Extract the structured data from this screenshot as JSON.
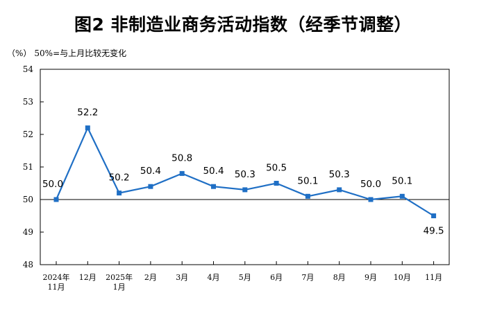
{
  "title": "图2  非制造业商务活动指数（经季节调整）",
  "unit_label": "（%）",
  "note": "50%=与上月比较无变化",
  "colors": {
    "line": "#1f6fc5",
    "marker": "#1f6fc5",
    "axis": "#000000",
    "text": "#000000"
  },
  "chart_data": {
    "type": "line",
    "title": "图2  非制造业商务活动指数（经季节调整）",
    "ylabel": "（%）",
    "ylim": [
      48,
      54
    ],
    "yticks": [
      "48",
      "49",
      "50",
      "51",
      "52",
      "53",
      "54"
    ],
    "grid": false,
    "categories": [
      [
        "2024年",
        "11月"
      ],
      [
        "12月"
      ],
      [
        "2025年",
        "1月"
      ],
      [
        "2月"
      ],
      [
        "3月"
      ],
      [
        "4月"
      ],
      [
        "5月"
      ],
      [
        "6月"
      ],
      [
        "7月"
      ],
      [
        "8月"
      ],
      [
        "9月"
      ],
      [
        "10月"
      ],
      [
        "11月"
      ]
    ],
    "values": [
      50.0,
      52.2,
      50.2,
      50.4,
      50.8,
      50.4,
      50.3,
      50.5,
      50.1,
      50.3,
      50.0,
      50.1,
      49.5
    ],
    "labels": [
      "50.0",
      "52.2",
      "50.2",
      "50.4",
      "50.8",
      "50.4",
      "50.3",
      "50.5",
      "50.1",
      "50.3",
      "50.0",
      "50.1",
      "49.5"
    ],
    "reference_line": 50
  }
}
